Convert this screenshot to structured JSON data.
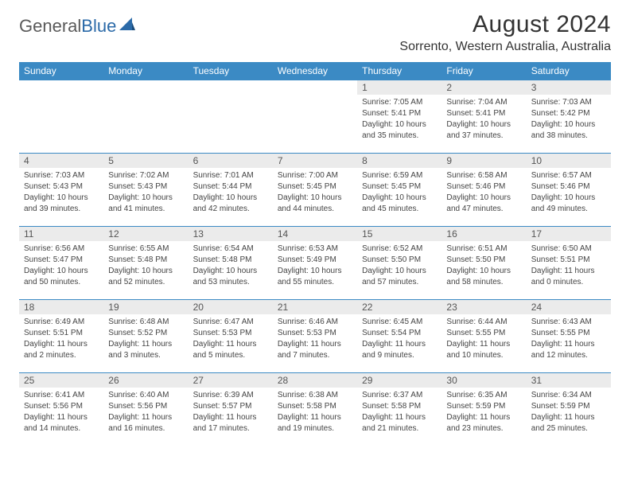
{
  "logo": {
    "left": "General",
    "right": "Blue"
  },
  "title": "August 2024",
  "location": "Sorrento, Western Australia, Australia",
  "headerColor": "#3b8ac4",
  "dayNames": [
    "Sunday",
    "Monday",
    "Tuesday",
    "Wednesday",
    "Thursday",
    "Friday",
    "Saturday"
  ],
  "weeks": [
    [
      null,
      null,
      null,
      null,
      {
        "n": "1",
        "sr": "Sunrise: 7:05 AM",
        "ss": "Sunset: 5:41 PM",
        "d1": "Daylight: 10 hours",
        "d2": "and 35 minutes."
      },
      {
        "n": "2",
        "sr": "Sunrise: 7:04 AM",
        "ss": "Sunset: 5:41 PM",
        "d1": "Daylight: 10 hours",
        "d2": "and 37 minutes."
      },
      {
        "n": "3",
        "sr": "Sunrise: 7:03 AM",
        "ss": "Sunset: 5:42 PM",
        "d1": "Daylight: 10 hours",
        "d2": "and 38 minutes."
      }
    ],
    [
      {
        "n": "4",
        "sr": "Sunrise: 7:03 AM",
        "ss": "Sunset: 5:43 PM",
        "d1": "Daylight: 10 hours",
        "d2": "and 39 minutes."
      },
      {
        "n": "5",
        "sr": "Sunrise: 7:02 AM",
        "ss": "Sunset: 5:43 PM",
        "d1": "Daylight: 10 hours",
        "d2": "and 41 minutes."
      },
      {
        "n": "6",
        "sr": "Sunrise: 7:01 AM",
        "ss": "Sunset: 5:44 PM",
        "d1": "Daylight: 10 hours",
        "d2": "and 42 minutes."
      },
      {
        "n": "7",
        "sr": "Sunrise: 7:00 AM",
        "ss": "Sunset: 5:45 PM",
        "d1": "Daylight: 10 hours",
        "d2": "and 44 minutes."
      },
      {
        "n": "8",
        "sr": "Sunrise: 6:59 AM",
        "ss": "Sunset: 5:45 PM",
        "d1": "Daylight: 10 hours",
        "d2": "and 45 minutes."
      },
      {
        "n": "9",
        "sr": "Sunrise: 6:58 AM",
        "ss": "Sunset: 5:46 PM",
        "d1": "Daylight: 10 hours",
        "d2": "and 47 minutes."
      },
      {
        "n": "10",
        "sr": "Sunrise: 6:57 AM",
        "ss": "Sunset: 5:46 PM",
        "d1": "Daylight: 10 hours",
        "d2": "and 49 minutes."
      }
    ],
    [
      {
        "n": "11",
        "sr": "Sunrise: 6:56 AM",
        "ss": "Sunset: 5:47 PM",
        "d1": "Daylight: 10 hours",
        "d2": "and 50 minutes."
      },
      {
        "n": "12",
        "sr": "Sunrise: 6:55 AM",
        "ss": "Sunset: 5:48 PM",
        "d1": "Daylight: 10 hours",
        "d2": "and 52 minutes."
      },
      {
        "n": "13",
        "sr": "Sunrise: 6:54 AM",
        "ss": "Sunset: 5:48 PM",
        "d1": "Daylight: 10 hours",
        "d2": "and 53 minutes."
      },
      {
        "n": "14",
        "sr": "Sunrise: 6:53 AM",
        "ss": "Sunset: 5:49 PM",
        "d1": "Daylight: 10 hours",
        "d2": "and 55 minutes."
      },
      {
        "n": "15",
        "sr": "Sunrise: 6:52 AM",
        "ss": "Sunset: 5:50 PM",
        "d1": "Daylight: 10 hours",
        "d2": "and 57 minutes."
      },
      {
        "n": "16",
        "sr": "Sunrise: 6:51 AM",
        "ss": "Sunset: 5:50 PM",
        "d1": "Daylight: 10 hours",
        "d2": "and 58 minutes."
      },
      {
        "n": "17",
        "sr": "Sunrise: 6:50 AM",
        "ss": "Sunset: 5:51 PM",
        "d1": "Daylight: 11 hours",
        "d2": "and 0 minutes."
      }
    ],
    [
      {
        "n": "18",
        "sr": "Sunrise: 6:49 AM",
        "ss": "Sunset: 5:51 PM",
        "d1": "Daylight: 11 hours",
        "d2": "and 2 minutes."
      },
      {
        "n": "19",
        "sr": "Sunrise: 6:48 AM",
        "ss": "Sunset: 5:52 PM",
        "d1": "Daylight: 11 hours",
        "d2": "and 3 minutes."
      },
      {
        "n": "20",
        "sr": "Sunrise: 6:47 AM",
        "ss": "Sunset: 5:53 PM",
        "d1": "Daylight: 11 hours",
        "d2": "and 5 minutes."
      },
      {
        "n": "21",
        "sr": "Sunrise: 6:46 AM",
        "ss": "Sunset: 5:53 PM",
        "d1": "Daylight: 11 hours",
        "d2": "and 7 minutes."
      },
      {
        "n": "22",
        "sr": "Sunrise: 6:45 AM",
        "ss": "Sunset: 5:54 PM",
        "d1": "Daylight: 11 hours",
        "d2": "and 9 minutes."
      },
      {
        "n": "23",
        "sr": "Sunrise: 6:44 AM",
        "ss": "Sunset: 5:55 PM",
        "d1": "Daylight: 11 hours",
        "d2": "and 10 minutes."
      },
      {
        "n": "24",
        "sr": "Sunrise: 6:43 AM",
        "ss": "Sunset: 5:55 PM",
        "d1": "Daylight: 11 hours",
        "d2": "and 12 minutes."
      }
    ],
    [
      {
        "n": "25",
        "sr": "Sunrise: 6:41 AM",
        "ss": "Sunset: 5:56 PM",
        "d1": "Daylight: 11 hours",
        "d2": "and 14 minutes."
      },
      {
        "n": "26",
        "sr": "Sunrise: 6:40 AM",
        "ss": "Sunset: 5:56 PM",
        "d1": "Daylight: 11 hours",
        "d2": "and 16 minutes."
      },
      {
        "n": "27",
        "sr": "Sunrise: 6:39 AM",
        "ss": "Sunset: 5:57 PM",
        "d1": "Daylight: 11 hours",
        "d2": "and 17 minutes."
      },
      {
        "n": "28",
        "sr": "Sunrise: 6:38 AM",
        "ss": "Sunset: 5:58 PM",
        "d1": "Daylight: 11 hours",
        "d2": "and 19 minutes."
      },
      {
        "n": "29",
        "sr": "Sunrise: 6:37 AM",
        "ss": "Sunset: 5:58 PM",
        "d1": "Daylight: 11 hours",
        "d2": "and 21 minutes."
      },
      {
        "n": "30",
        "sr": "Sunrise: 6:35 AM",
        "ss": "Sunset: 5:59 PM",
        "d1": "Daylight: 11 hours",
        "d2": "and 23 minutes."
      },
      {
        "n": "31",
        "sr": "Sunrise: 6:34 AM",
        "ss": "Sunset: 5:59 PM",
        "d1": "Daylight: 11 hours",
        "d2": "and 25 minutes."
      }
    ]
  ]
}
